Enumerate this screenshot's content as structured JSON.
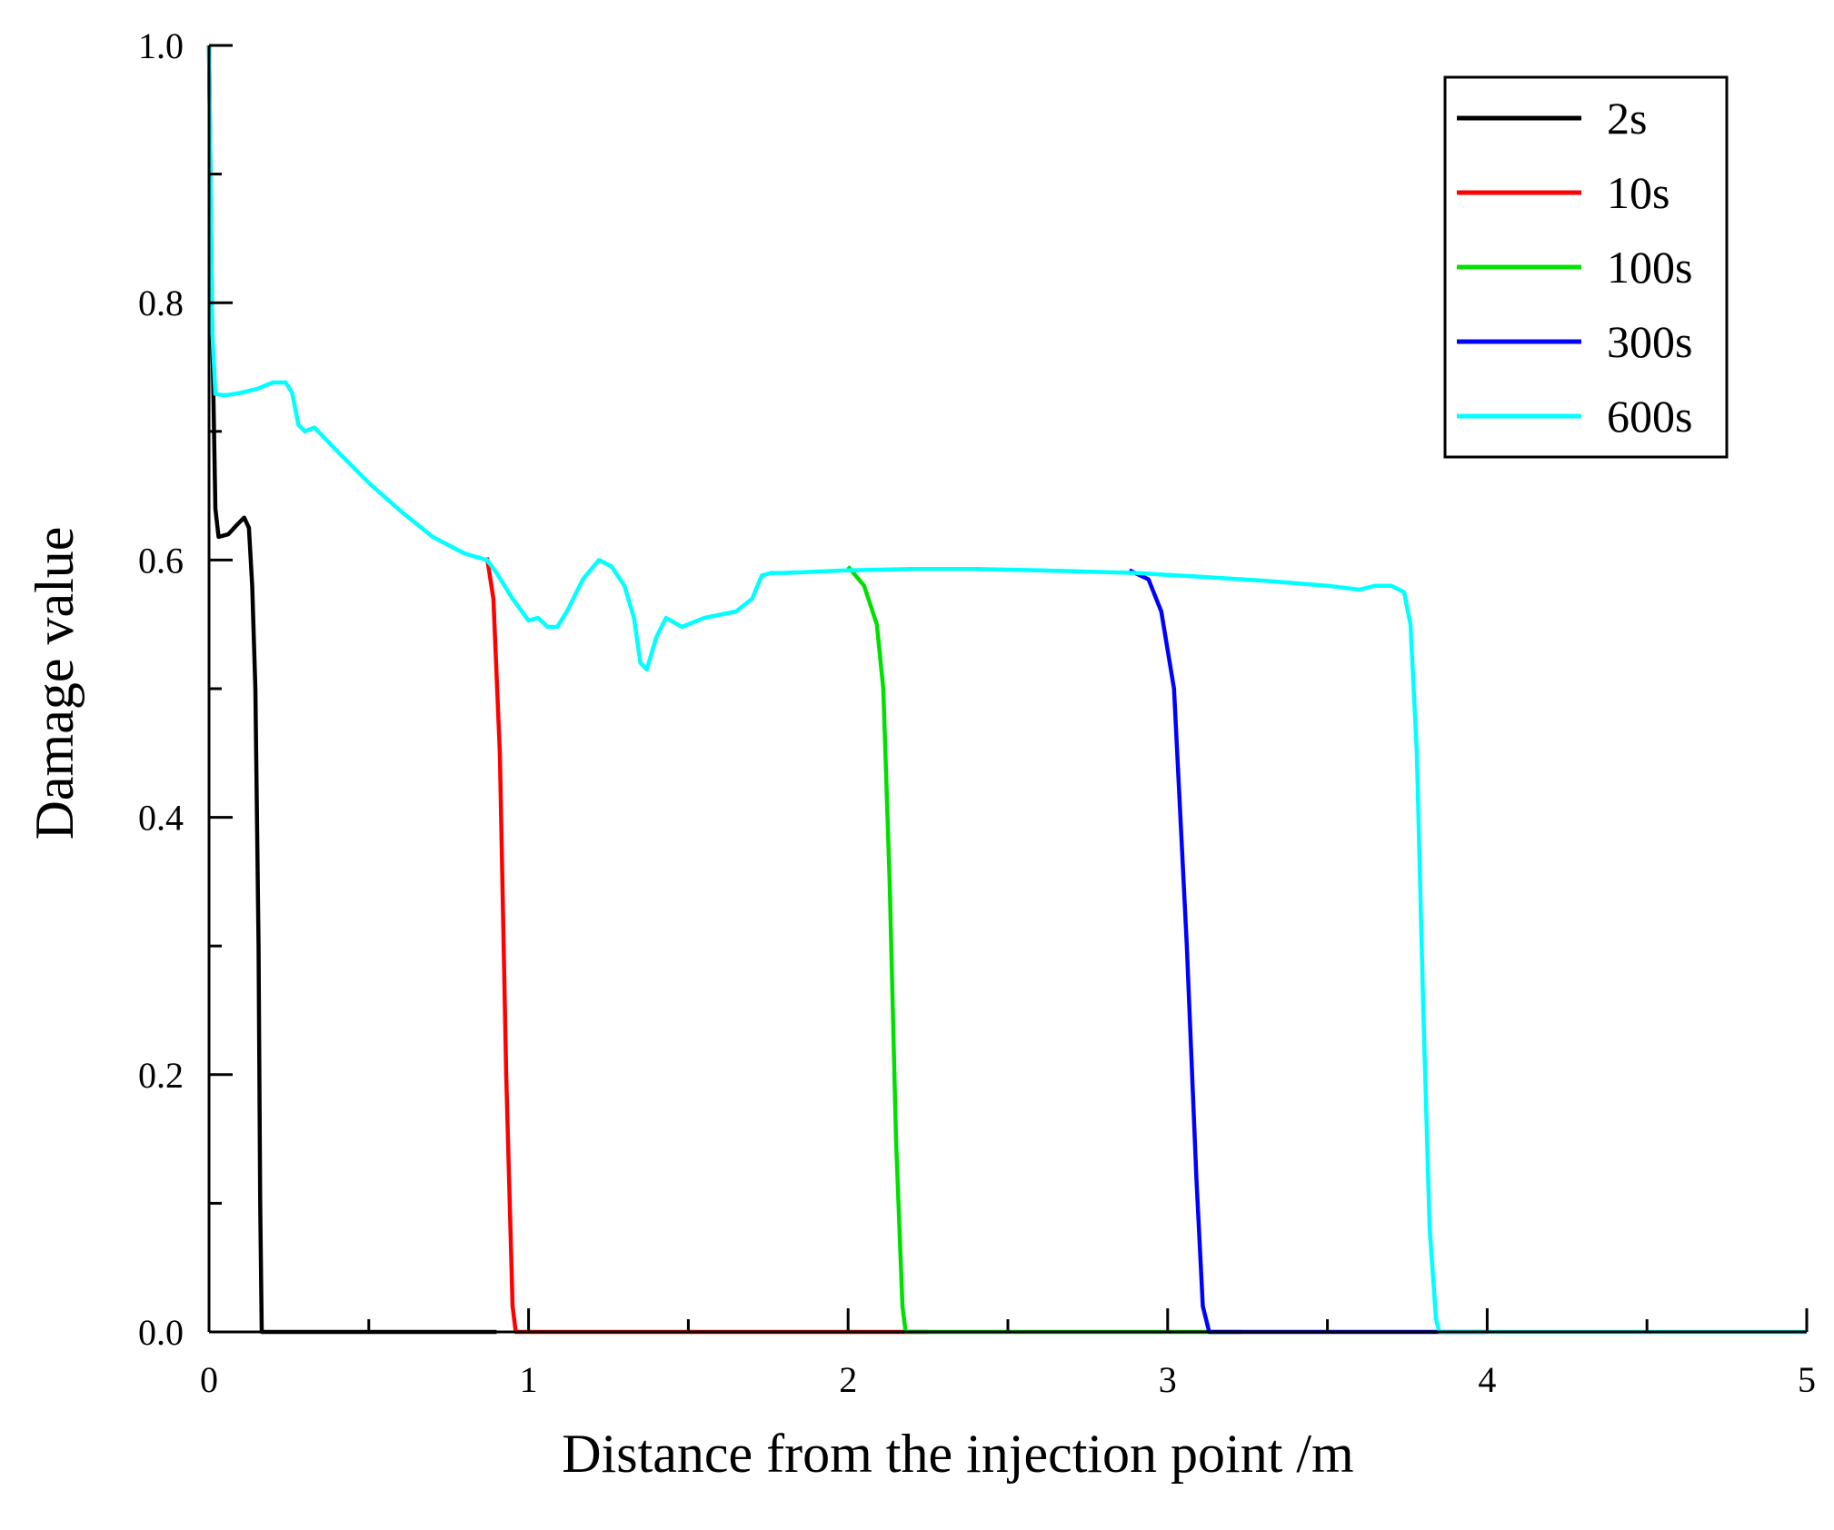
{
  "chart_data": {
    "type": "line",
    "title": "",
    "xlabel": "Distance from the injection point /m",
    "ylabel": "Damage value",
    "xlim": [
      0,
      5
    ],
    "ylim": [
      0,
      1.0
    ],
    "xticks": [
      0,
      1,
      2,
      3,
      4,
      5
    ],
    "xtick_labels": [
      "0",
      "1",
      "2",
      "3",
      "4",
      "5"
    ],
    "yticks": [
      0,
      0.2,
      0.4,
      0.6,
      0.8,
      1.0
    ],
    "ytick_labels": [
      "0.0",
      "0.2",
      "0.4",
      "0.6",
      "0.8",
      "1.0"
    ],
    "grid": false,
    "legend_position": "top-right",
    "series": [
      {
        "name": "2s",
        "color": "#000000",
        "points": [
          [
            0,
            1.0
          ],
          [
            0.01,
            0.78
          ],
          [
            0.02,
            0.64
          ],
          [
            0.03,
            0.618
          ],
          [
            0.06,
            0.62
          ],
          [
            0.09,
            0.628
          ],
          [
            0.11,
            0.633
          ],
          [
            0.125,
            0.625
          ],
          [
            0.135,
            0.58
          ],
          [
            0.145,
            0.5
          ],
          [
            0.155,
            0.3
          ],
          [
            0.16,
            0.1
          ],
          [
            0.165,
            0.0
          ],
          [
            0.9,
            0.0
          ]
        ]
      },
      {
        "name": "10s",
        "color": "#ff0000",
        "points": [
          [
            0.87,
            0.602
          ],
          [
            0.89,
            0.57
          ],
          [
            0.91,
            0.45
          ],
          [
            0.93,
            0.2
          ],
          [
            0.95,
            0.02
          ],
          [
            0.96,
            0.0
          ],
          [
            2.25,
            0.0
          ]
        ]
      },
      {
        "name": "100s",
        "color": "#00e000",
        "points": [
          [
            2.0,
            0.595
          ],
          [
            2.05,
            0.58
          ],
          [
            2.09,
            0.55
          ],
          [
            2.11,
            0.5
          ],
          [
            2.13,
            0.35
          ],
          [
            2.15,
            0.15
          ],
          [
            2.17,
            0.02
          ],
          [
            2.18,
            0.0
          ],
          [
            3.23,
            0.0
          ]
        ]
      },
      {
        "name": "300s",
        "color": "#0000ff",
        "points": [
          [
            2.88,
            0.592
          ],
          [
            2.94,
            0.585
          ],
          [
            2.98,
            0.56
          ],
          [
            3.02,
            0.5
          ],
          [
            3.06,
            0.3
          ],
          [
            3.09,
            0.12
          ],
          [
            3.11,
            0.02
          ],
          [
            3.13,
            0.0
          ],
          [
            4.0,
            0.0
          ]
        ]
      },
      {
        "name": "600s",
        "color": "#00ffff",
        "points": [
          [
            0,
            1.0
          ],
          [
            0.01,
            0.78
          ],
          [
            0.02,
            0.729
          ],
          [
            0.05,
            0.728
          ],
          [
            0.1,
            0.73
          ],
          [
            0.15,
            0.733
          ],
          [
            0.2,
            0.738
          ],
          [
            0.24,
            0.738
          ],
          [
            0.26,
            0.73
          ],
          [
            0.28,
            0.705
          ],
          [
            0.3,
            0.7
          ],
          [
            0.33,
            0.703
          ],
          [
            0.4,
            0.685
          ],
          [
            0.5,
            0.66
          ],
          [
            0.6,
            0.638
          ],
          [
            0.7,
            0.618
          ],
          [
            0.8,
            0.605
          ],
          [
            0.87,
            0.6
          ],
          [
            0.9,
            0.59
          ],
          [
            0.95,
            0.57
          ],
          [
            1.0,
            0.553
          ],
          [
            1.03,
            0.555
          ],
          [
            1.06,
            0.548
          ],
          [
            1.09,
            0.548
          ],
          [
            1.12,
            0.56
          ],
          [
            1.17,
            0.585
          ],
          [
            1.22,
            0.6
          ],
          [
            1.26,
            0.595
          ],
          [
            1.3,
            0.58
          ],
          [
            1.33,
            0.555
          ],
          [
            1.35,
            0.52
          ],
          [
            1.37,
            0.515
          ],
          [
            1.4,
            0.54
          ],
          [
            1.43,
            0.555
          ],
          [
            1.48,
            0.548
          ],
          [
            1.55,
            0.555
          ],
          [
            1.65,
            0.56
          ],
          [
            1.7,
            0.57
          ],
          [
            1.73,
            0.588
          ],
          [
            1.76,
            0.59
          ],
          [
            1.8,
            0.59
          ],
          [
            2.0,
            0.592
          ],
          [
            2.2,
            0.593
          ],
          [
            2.4,
            0.593
          ],
          [
            2.6,
            0.592
          ],
          [
            2.9,
            0.59
          ],
          [
            3.1,
            0.587
          ],
          [
            3.3,
            0.584
          ],
          [
            3.5,
            0.58
          ],
          [
            3.6,
            0.577
          ],
          [
            3.65,
            0.58
          ],
          [
            3.7,
            0.58
          ],
          [
            3.74,
            0.575
          ],
          [
            3.76,
            0.55
          ],
          [
            3.78,
            0.45
          ],
          [
            3.8,
            0.25
          ],
          [
            3.82,
            0.08
          ],
          [
            3.84,
            0.01
          ],
          [
            3.85,
            0.0
          ],
          [
            4.0,
            0.0
          ],
          [
            4.5,
            0.0
          ],
          [
            5.0,
            0.0
          ]
        ]
      }
    ]
  }
}
